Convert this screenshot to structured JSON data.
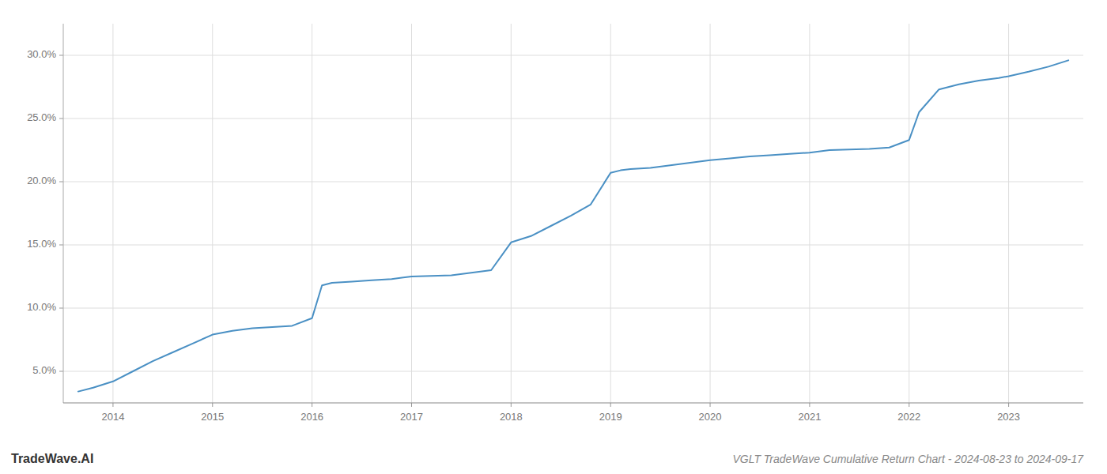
{
  "chart_data": {
    "type": "line",
    "title": "VGLT TradeWave Cumulative Return Chart - 2024-08-23 to 2024-09-17",
    "annotations": [
      "TradeWave.AI"
    ],
    "color": "#4a90c4",
    "grid": true,
    "x": [
      2013.65,
      2013.8,
      2014.0,
      2014.2,
      2014.4,
      2014.6,
      2014.8,
      2015.0,
      2015.2,
      2015.4,
      2015.6,
      2015.8,
      2016.0,
      2016.1,
      2016.2,
      2016.4,
      2016.6,
      2016.8,
      2017.0,
      2017.2,
      2017.4,
      2017.6,
      2017.8,
      2018.0,
      2018.2,
      2018.4,
      2018.6,
      2018.8,
      2019.0,
      2019.1,
      2019.2,
      2019.4,
      2019.6,
      2019.8,
      2020.0,
      2020.2,
      2020.4,
      2020.6,
      2020.8,
      2021.0,
      2021.2,
      2021.4,
      2021.6,
      2021.8,
      2022.0,
      2022.1,
      2022.3,
      2022.5,
      2022.7,
      2022.9,
      2023.0,
      2023.2,
      2023.4,
      2023.6
    ],
    "values": [
      3.4,
      3.7,
      4.2,
      5.0,
      5.8,
      6.5,
      7.2,
      7.9,
      8.2,
      8.4,
      8.5,
      8.6,
      9.2,
      11.8,
      12.0,
      12.1,
      12.2,
      12.3,
      12.5,
      12.55,
      12.6,
      12.8,
      13.0,
      15.2,
      15.7,
      16.5,
      17.3,
      18.2,
      20.7,
      20.9,
      21.0,
      21.1,
      21.3,
      21.5,
      21.7,
      21.85,
      22.0,
      22.1,
      22.2,
      22.3,
      22.5,
      22.55,
      22.6,
      22.7,
      23.3,
      25.5,
      27.3,
      27.7,
      28.0,
      28.2,
      28.35,
      28.7,
      29.1,
      29.6
    ],
    "xlim": [
      2013.5,
      2023.75
    ],
    "ylim": [
      2.5,
      32.5
    ],
    "xticks": [
      2014,
      2015,
      2016,
      2017,
      2018,
      2019,
      2020,
      2021,
      2022,
      2023
    ],
    "yticks": [
      {
        "value": 5.0,
        "label": "5.0%"
      },
      {
        "value": 10.0,
        "label": "10.0%"
      },
      {
        "value": 15.0,
        "label": "15.0%"
      },
      {
        "value": 20.0,
        "label": "20.0%"
      },
      {
        "value": 25.0,
        "label": "25.0%"
      },
      {
        "value": 30.0,
        "label": "30.0%"
      }
    ]
  }
}
